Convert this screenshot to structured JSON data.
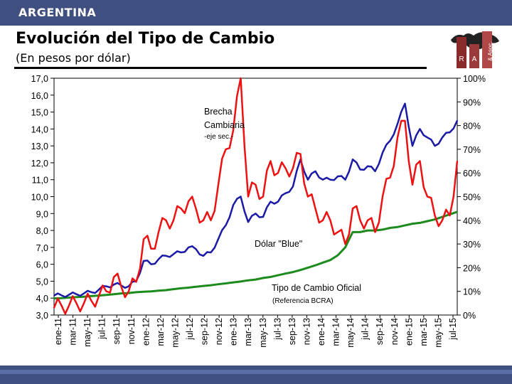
{
  "header": {
    "country": "ARGENTINA",
    "title": "Evolución del Tipo de Cambio",
    "subtitle": "(En pesos por dólar)"
  },
  "logo_text": [
    "R",
    "A",
    "& Asoc."
  ],
  "colors": {
    "bar": "#3f4f80",
    "blue": "#1a1aa6",
    "red": "#ee1111",
    "green": "#1c8a1c"
  },
  "chart_data": {
    "type": "line",
    "x_ticks": [
      "ene-11",
      "mar-11",
      "may-11",
      "jul-11",
      "sep-11",
      "nov-11",
      "ene-12",
      "mar-12",
      "may-12",
      "jul-12",
      "sep-12",
      "nov-12",
      "ene-13",
      "mar-13",
      "may-13",
      "jul-13",
      "sep-13",
      "nov-13",
      "ene-14",
      "mar-14",
      "may-14",
      "jul-14",
      "sep-14",
      "nov-14",
      "ene-15",
      "mar-15",
      "may-15",
      "jul-15"
    ],
    "y_left": {
      "ticks": [
        "17,0",
        "16,0",
        "15,0",
        "14,0",
        "13,0",
        "12,0",
        "11,0",
        "10,0",
        "9,0",
        "8,0",
        "7,0",
        "6,0",
        "5,0",
        "4,0",
        "3,0"
      ],
      "range": [
        3,
        17
      ]
    },
    "y_right": {
      "ticks": [
        "100%",
        "90%",
        "80%",
        "70%",
        "60%",
        "50%",
        "40%",
        "30%",
        "20%",
        "10%",
        "0%"
      ],
      "range": [
        0,
        100
      ]
    },
    "annotations": {
      "brecha": [
        "Brecha",
        "Cambiaria",
        "-eje sec.-"
      ],
      "blue": "Dólar \"Blue\"",
      "oficial": "Tipo de Cambio Oficial",
      "oficial_sub": "(Referencia BCRA)"
    },
    "series": [
      {
        "name": "Tipo de Cambio Oficial",
        "axis": "left",
        "color": "#1c8a1c",
        "x": [
          0,
          1,
          2,
          3,
          4,
          5,
          6,
          7,
          8,
          9,
          10,
          11,
          12,
          13,
          14,
          15,
          16,
          17,
          18,
          19,
          20,
          21,
          22,
          23,
          24,
          25,
          26,
          27,
          28,
          29,
          30,
          31,
          32,
          33,
          34,
          35,
          36,
          37,
          38,
          39,
          40,
          41,
          42,
          43,
          44,
          45,
          46,
          47,
          48,
          49,
          50,
          51,
          52,
          53,
          54
        ],
        "values": [
          3.98,
          4.0,
          4.03,
          4.06,
          4.08,
          4.12,
          4.15,
          4.19,
          4.23,
          4.28,
          4.3,
          4.35,
          4.38,
          4.4,
          4.44,
          4.47,
          4.53,
          4.58,
          4.62,
          4.67,
          4.72,
          4.76,
          4.82,
          4.87,
          4.93,
          4.98,
          5.05,
          5.1,
          5.19,
          5.25,
          5.35,
          5.45,
          5.54,
          5.66,
          5.8,
          5.94,
          6.1,
          6.25,
          6.53,
          7.0,
          7.9,
          7.9,
          8.0,
          8.0,
          8.05,
          8.15,
          8.2,
          8.3,
          8.4,
          8.45,
          8.55,
          8.65,
          8.8,
          8.95,
          9.1
        ]
      },
      {
        "name": "Dólar \"Blue\"",
        "axis": "left",
        "color": "#1a1aa6",
        "x": [
          0,
          1,
          2,
          3,
          4,
          5,
          6,
          7,
          8,
          9,
          10,
          11,
          12,
          13,
          14,
          15,
          16,
          17,
          18,
          19,
          20,
          21,
          22,
          23,
          24,
          25,
          26,
          27,
          28,
          29,
          30,
          31,
          32,
          33,
          34,
          35,
          36,
          37,
          38,
          39,
          40,
          41,
          42,
          43,
          44,
          45,
          46,
          47,
          48,
          49,
          50,
          51,
          52,
          53,
          54
        ],
        "values": [
          4.15,
          4.17,
          4.2,
          4.23,
          4.28,
          4.35,
          4.5,
          4.7,
          4.8,
          4.75,
          4.7,
          5.0,
          6.2,
          6.0,
          6.3,
          6.5,
          6.6,
          6.7,
          7.0,
          6.9,
          6.5,
          6.7,
          7.5,
          8.3,
          9.5,
          10.0,
          8.5,
          9.0,
          8.8,
          9.7,
          9.7,
          10.2,
          10.6,
          12.2,
          11.0,
          11.5,
          11.0,
          11.0,
          11.2,
          11.0,
          12.2,
          11.6,
          11.8,
          11.5,
          12.6,
          13.3,
          14.3,
          15.5,
          13.0,
          14.0,
          13.5,
          13.0,
          13.5,
          13.8,
          14.5
        ]
      },
      {
        "name": "Brecha Cambiaria",
        "axis": "right",
        "color": "#ee1111",
        "x": [
          0,
          1,
          2,
          3,
          4,
          5,
          6,
          7,
          8,
          9,
          10,
          11,
          12,
          13,
          14,
          15,
          16,
          17,
          18,
          19,
          20,
          21,
          22,
          23,
          24,
          25,
          26,
          27,
          28,
          29,
          30,
          31,
          32,
          33,
          34,
          35,
          36,
          37,
          38,
          39,
          40,
          41,
          42,
          43,
          44,
          45,
          46,
          47,
          48,
          49,
          50,
          51,
          52,
          53,
          54
        ],
        "values": [
          3,
          4,
          4,
          5,
          5,
          6,
          8,
          10,
          16,
          12,
          10,
          14,
          32,
          28,
          35,
          40,
          40,
          45,
          48,
          45,
          40,
          40,
          55,
          70,
          78,
          100,
          50,
          55,
          50,
          65,
          60,
          62,
          62,
          68,
          50,
          45,
          40,
          40,
          35,
          30,
          45,
          40,
          40,
          35,
          50,
          58,
          75,
          82,
          55,
          65,
          50,
          42,
          40,
          42,
          65
        ]
      }
    ]
  }
}
